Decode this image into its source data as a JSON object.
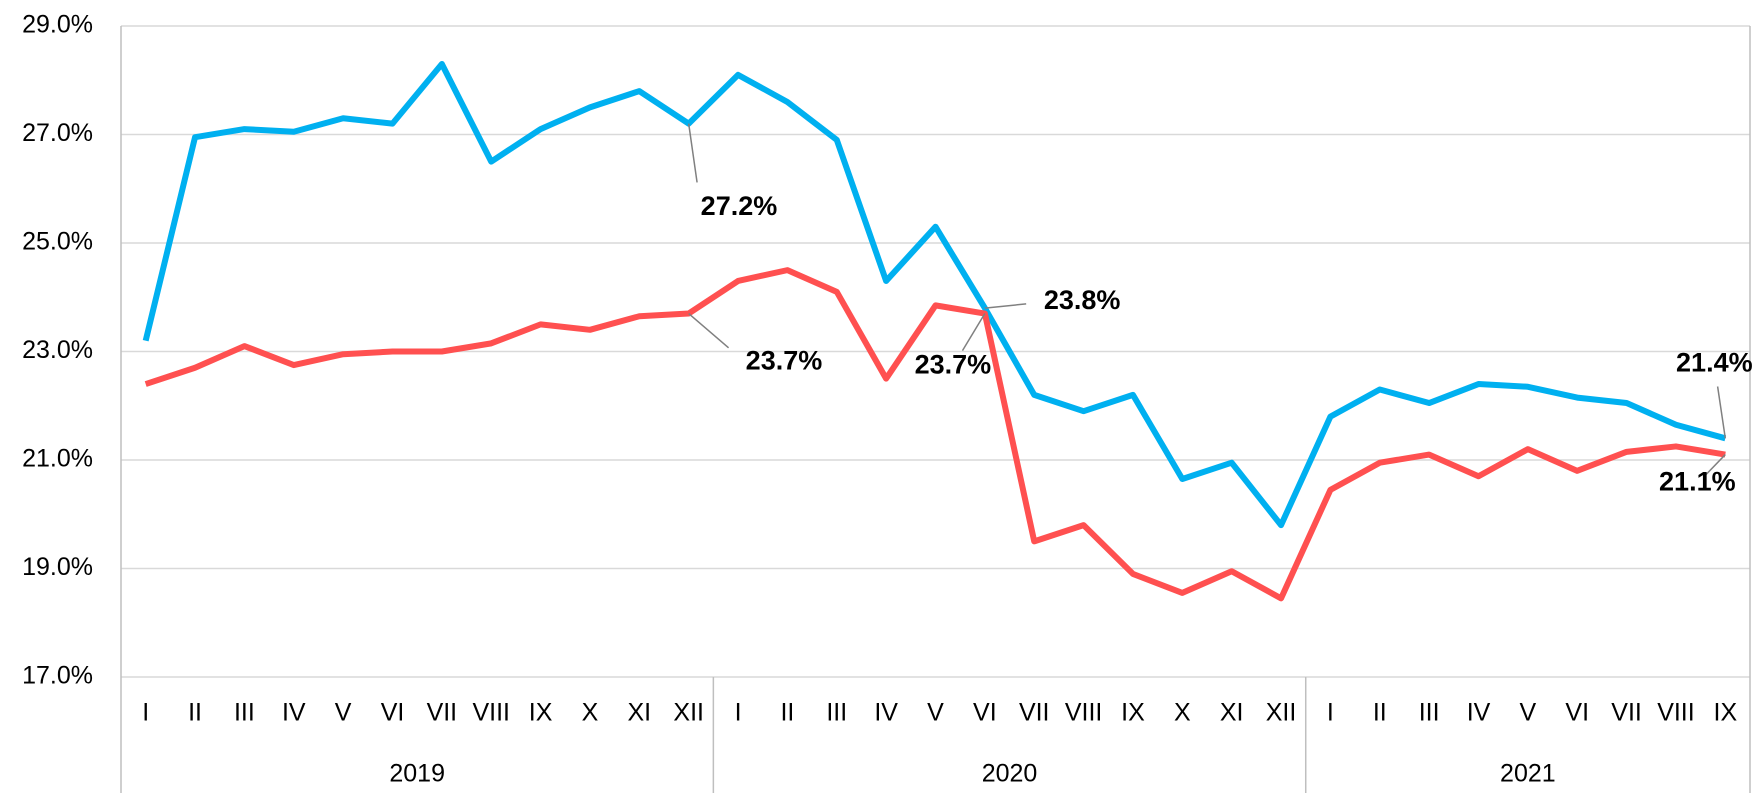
{
  "chart_data": {
    "type": "line",
    "categories": [
      "I",
      "II",
      "III",
      "IV",
      "V",
      "VI",
      "VII",
      "VIII",
      "IX",
      "X",
      "XI",
      "XII",
      "I",
      "II",
      "III",
      "IV",
      "V",
      "VI",
      "VII",
      "VIII",
      "IX",
      "X",
      "XI",
      "XII",
      "I",
      "II",
      "III",
      "IV",
      "V",
      "VI",
      "VII",
      "VIII",
      "IX"
    ],
    "category_groups": [
      {
        "label": "2019",
        "count": 12
      },
      {
        "label": "2020",
        "count": 12
      },
      {
        "label": "2021",
        "count": 9
      }
    ],
    "series": [
      {
        "color": "#00b0f0",
        "values": [
          23.2,
          26.95,
          27.1,
          27.05,
          27.3,
          27.2,
          28.3,
          26.5,
          27.1,
          27.5,
          27.8,
          27.2,
          28.1,
          27.6,
          26.9,
          24.3,
          25.3,
          23.8,
          22.2,
          21.9,
          22.2,
          20.65,
          20.95,
          19.8,
          21.8,
          22.3,
          22.05,
          22.4,
          22.35,
          22.15,
          22.05,
          21.65,
          21.4
        ],
        "value_labels": [
          null,
          null,
          null,
          null,
          null,
          null,
          null,
          null,
          null,
          null,
          null,
          "27.2%",
          null,
          null,
          null,
          null,
          null,
          "23.8%",
          null,
          null,
          null,
          null,
          null,
          null,
          null,
          null,
          null,
          null,
          null,
          null,
          null,
          null,
          "21.4%"
        ]
      },
      {
        "color": "#ff5050",
        "values": [
          22.4,
          22.7,
          23.1,
          22.75,
          22.95,
          23.0,
          23.0,
          23.15,
          23.5,
          23.4,
          23.65,
          23.7,
          24.3,
          24.5,
          24.1,
          22.5,
          23.85,
          23.7,
          19.5,
          19.8,
          18.9,
          18.55,
          18.95,
          18.45,
          20.45,
          20.95,
          21.1,
          20.7,
          21.2,
          20.8,
          21.15,
          21.25,
          21.1
        ],
        "value_labels": [
          null,
          null,
          null,
          null,
          null,
          null,
          null,
          null,
          null,
          null,
          null,
          "23.7%",
          null,
          null,
          null,
          null,
          null,
          "23.7%",
          null,
          null,
          null,
          null,
          null,
          null,
          null,
          null,
          null,
          null,
          null,
          null,
          null,
          null,
          "21.1%"
        ]
      }
    ],
    "ylim": [
      17,
      29
    ],
    "yticks": [
      {
        "value": 17,
        "label": "17.0%"
      },
      {
        "value": 19,
        "label": "19.0%"
      },
      {
        "value": 21,
        "label": "21.0%"
      },
      {
        "value": 23,
        "label": "23.0%"
      },
      {
        "value": 25,
        "label": "25.0%"
      },
      {
        "value": 27,
        "label": "27.0%"
      },
      {
        "value": 29,
        "label": "29.0%"
      }
    ],
    "grid": true
  }
}
